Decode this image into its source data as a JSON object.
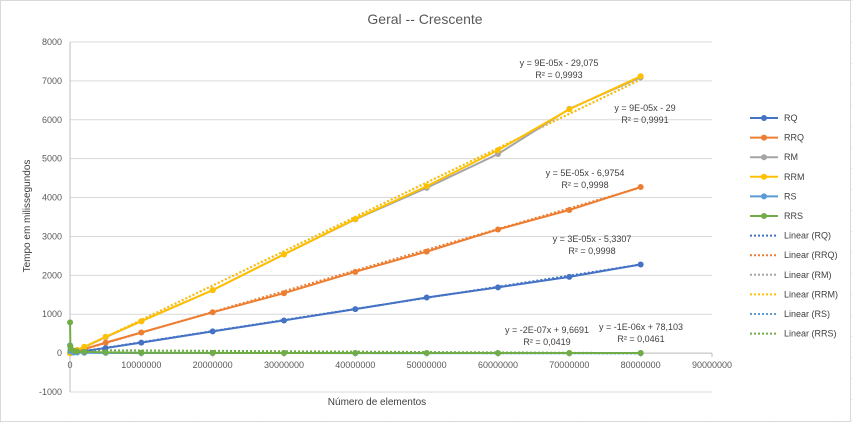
{
  "chart_data": {
    "type": "scatter",
    "title": "Geral -- Crescente",
    "xlabel": "Número de elementos",
    "ylabel": "Tempo em milissegundos",
    "xlim": [
      0,
      90000000
    ],
    "ylim": [
      -1000,
      8000
    ],
    "x_ticks": [
      "0",
      "10000000",
      "20000000",
      "30000000",
      "40000000",
      "50000000",
      "60000000",
      "70000000",
      "80000000",
      "90000000"
    ],
    "y_ticks": [
      "-1000",
      "0",
      "1000",
      "2000",
      "3000",
      "4000",
      "5000",
      "6000",
      "7000",
      "8000"
    ],
    "grid": true,
    "legend_position": "right",
    "x": [
      10000,
      50000,
      100000,
      500000,
      1000000,
      2000000,
      5000000,
      10000000,
      20000000,
      30000000,
      40000000,
      50000000,
      60000000,
      70000000,
      80000000
    ],
    "series": [
      {
        "name": "RQ",
        "color": "#4472c4",
        "values": [
          0,
          2,
          5,
          15,
          30,
          55,
          130,
          270,
          560,
          840,
          1130,
          1430,
          1690,
          1960,
          2280
        ]
      },
      {
        "name": "RRQ",
        "color": "#ed7d31",
        "values": [
          0,
          3,
          8,
          30,
          55,
          105,
          270,
          530,
          1050,
          1540,
          2090,
          2610,
          3180,
          3680,
          4270
        ]
      },
      {
        "name": "RM",
        "color": "#a5a5a5",
        "values": [
          1,
          5,
          10,
          40,
          80,
          160,
          410,
          820,
          1620,
          2540,
          3440,
          4250,
          5120,
          6280,
          7090
        ]
      },
      {
        "name": "RRM",
        "color": "#ffc000",
        "values": [
          1,
          5,
          10,
          40,
          80,
          160,
          420,
          820,
          1620,
          2540,
          3450,
          4290,
          5220,
          6270,
          7120
        ]
      },
      {
        "name": "RS",
        "color": "#5b9bd5",
        "values": [
          200,
          60,
          40,
          20,
          15,
          10,
          5,
          3,
          2,
          2,
          1,
          1,
          1,
          1,
          1
        ]
      },
      {
        "name": "RRS",
        "color": "#70ad47",
        "values": [
          790,
          180,
          110,
          60,
          45,
          35,
          20,
          10,
          5,
          4,
          3,
          3,
          2,
          2,
          2
        ]
      }
    ],
    "trendlines": [
      {
        "name": "Linear (RQ)",
        "color": "#4472c4",
        "slope": 2.854e-05,
        "intercept": -5.3307,
        "equation": "y = 3E-05x - 5,3307",
        "r2": "R² = 0,9998"
      },
      {
        "name": "Linear (RRQ)",
        "color": "#ed7d31",
        "slope": 5.33e-05,
        "intercept": -6.9754,
        "equation": "y = 5E-05x - 6,9754",
        "r2": "R² = 0,9998"
      },
      {
        "name": "Linear (RM)",
        "color": "#a5a5a5",
        "slope": 8.83e-05,
        "intercept": -29.075,
        "equation": "y = 9E-05x - 29,075",
        "r2": "R² = 0,9993"
      },
      {
        "name": "Linear (RRM)",
        "color": "#ffc000",
        "slope": 8.83e-05,
        "intercept": -29,
        "equation": "y = 9E-05x - 29",
        "r2": "R² = 0,9991"
      },
      {
        "name": "Linear (RS)",
        "color": "#5b9bd5",
        "slope": -2e-07,
        "intercept": 9.6691,
        "equation": "y = -2E-07x + 9,6691",
        "r2": "R² = 0,0419"
      },
      {
        "name": "Linear (RRS)",
        "color": "#70ad47",
        "slope": -1e-06,
        "intercept": 78.103,
        "equation": "y = -1E-06x + 78,103",
        "r2": "R² = 0,0461"
      }
    ]
  }
}
